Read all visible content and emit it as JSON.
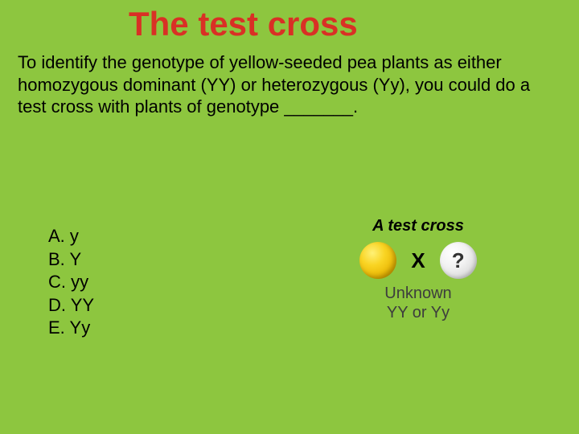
{
  "colors": {
    "background": "#8dc63f",
    "title": "#d93025",
    "body_text": "#000000",
    "caption_text": "#3d3d3d"
  },
  "title": "The test cross",
  "question": "To identify the genotype of yellow-seeded pea plants as either homozygous dominant (YY) or heterozygous (Yy), you could do a test cross with plants of genotype _______.",
  "options": [
    {
      "label": "A.",
      "text": "y"
    },
    {
      "label": "B.",
      "text": "Y"
    },
    {
      "label": "C.",
      "text": "yy"
    },
    {
      "label": "D.",
      "text": "YY"
    },
    {
      "label": "E.",
      "text": "Yy"
    }
  ],
  "diagram": {
    "title": "A test cross",
    "x_symbol": "X",
    "unknown_symbol": "?",
    "caption_line1": "Unknown",
    "caption_line2": "YY or Yy",
    "yellow_circle_gradient": [
      "#fff176",
      "#f9d423",
      "#e8b300",
      "#c79400"
    ],
    "unknown_circle_gradient": [
      "#ffffff",
      "#f2f2f2",
      "#d8d8d8",
      "#bcbcbc"
    ]
  },
  "typography": {
    "title_fontsize": 42,
    "body_fontsize": 22,
    "diagram_title_fontsize": 20,
    "font_family_body": "Comic Sans MS",
    "font_family_diagram": "Arial"
  }
}
